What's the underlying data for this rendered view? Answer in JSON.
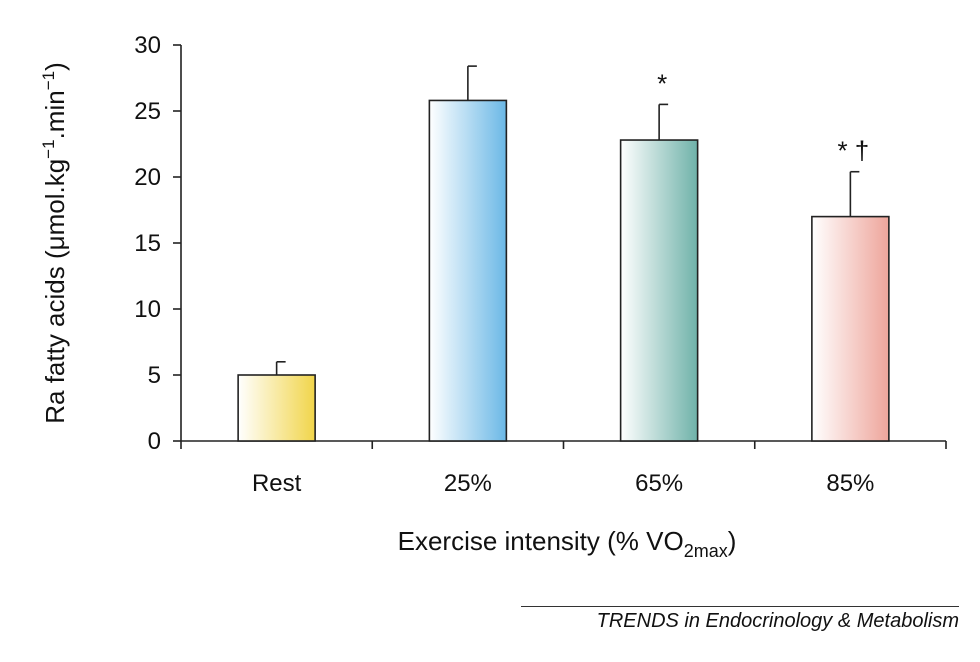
{
  "chart_data": {
    "type": "bar",
    "categories": [
      "Rest",
      "25%",
      "65%",
      "85%"
    ],
    "values": [
      5.0,
      25.8,
      22.8,
      17.0
    ],
    "errors": [
      1.0,
      2.6,
      2.7,
      3.4
    ],
    "annotations": [
      "",
      "",
      "*",
      "* †"
    ],
    "colors": [
      "#f1d54a",
      "#6bb8e6",
      "#6fb2a9",
      "#eea59b"
    ],
    "ylim": [
      0,
      30
    ],
    "yticks": [
      "0",
      "5",
      "10",
      "15",
      "20",
      "25",
      "30"
    ],
    "ylabel_main": "Ra fatty acids (μmol.kg",
    "ylabel_sup1": "−1",
    "ylabel_mid": ".min",
    "ylabel_sup2": "−1",
    "ylabel_end": ")",
    "xlabel_main": "Exercise intensity (% VO",
    "xlabel_sub": "2max",
    "xlabel_end": ")"
  },
  "credit": "TRENDS in Endocrinology & Metabolism"
}
